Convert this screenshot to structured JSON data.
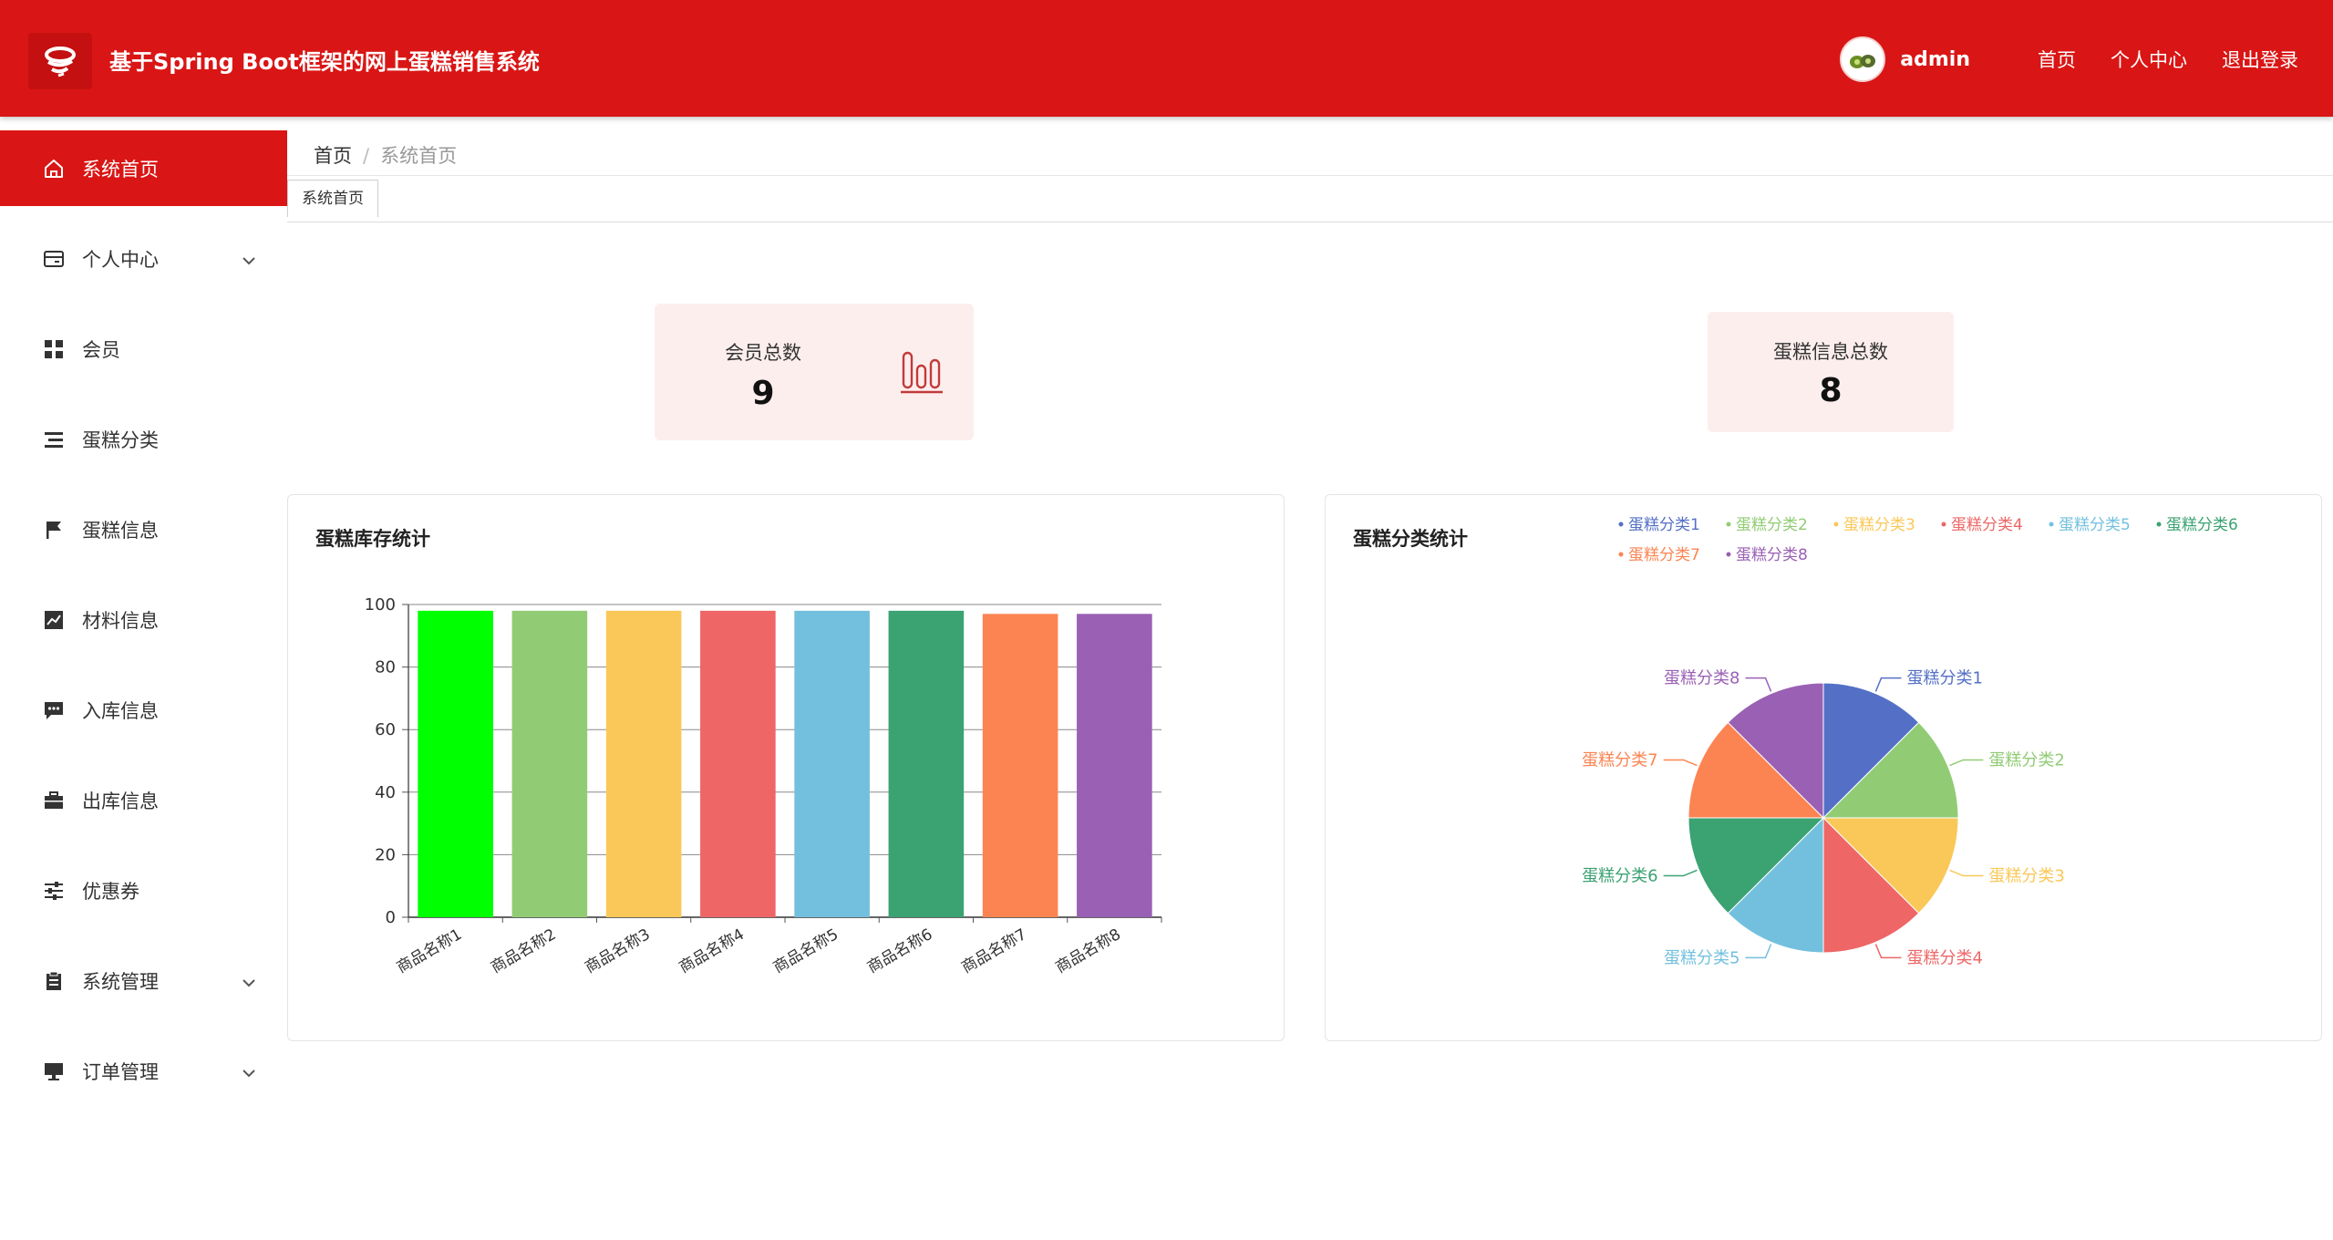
{
  "header": {
    "title": "基于Spring Boot框架的网上蛋糕销售系统",
    "username": "admin",
    "links": [
      "首页",
      "个人中心",
      "退出登录"
    ]
  },
  "sidebar": {
    "items": [
      {
        "label": "系统首页",
        "icon": "home-icon",
        "active": true,
        "arrow": false
      },
      {
        "label": "个人中心",
        "icon": "card-icon",
        "active": false,
        "arrow": true
      },
      {
        "label": "会员",
        "icon": "grid-icon",
        "active": false,
        "arrow": false
      },
      {
        "label": "蛋糕分类",
        "icon": "list-icon",
        "active": false,
        "arrow": false
      },
      {
        "label": "蛋糕信息",
        "icon": "flag-icon",
        "active": false,
        "arrow": false
      },
      {
        "label": "材料信息",
        "icon": "chart-line-icon",
        "active": false,
        "arrow": false
      },
      {
        "label": "入库信息",
        "icon": "message-icon",
        "active": false,
        "arrow": false
      },
      {
        "label": "出库信息",
        "icon": "briefcase-icon",
        "active": false,
        "arrow": false
      },
      {
        "label": "优惠券",
        "icon": "sliders-icon",
        "active": false,
        "arrow": false
      },
      {
        "label": "系统管理",
        "icon": "clipboard-icon",
        "active": false,
        "arrow": true
      },
      {
        "label": "订单管理",
        "icon": "monitor-icon",
        "active": false,
        "arrow": true
      }
    ]
  },
  "breadcrumb": {
    "home": "首页",
    "separator": "/",
    "current": "系统首页"
  },
  "tabs": [
    {
      "label": "系统首页"
    }
  ],
  "stats": {
    "members": {
      "label": "会员总数",
      "value": "9"
    },
    "cakes": {
      "label": "蛋糕信息总数",
      "value": "8"
    }
  },
  "panels": {
    "bar_title": "蛋糕库存统计",
    "pie_title": "蛋糕分类统计"
  },
  "colors": {
    "accent": "#d91615",
    "card_bg": "#fdeeee"
  },
  "chart_data": [
    {
      "type": "bar",
      "title": "蛋糕库存统计",
      "categories": [
        "商品名称1",
        "商品名称2",
        "商品名称3",
        "商品名称4",
        "商品名称5",
        "商品名称6",
        "商品名称7",
        "商品名称8"
      ],
      "values": [
        98,
        98,
        98,
        98,
        98,
        98,
        97,
        97
      ],
      "colors": [
        "#00ff00",
        "#91cc75",
        "#fac858",
        "#ee6666",
        "#73c0de",
        "#3ba272",
        "#fc8452",
        "#9a60b4"
      ],
      "ylim": [
        0,
        100
      ],
      "yticks": [
        0,
        20,
        40,
        60,
        80,
        100
      ],
      "grid": true,
      "legend": "none"
    },
    {
      "type": "pie",
      "title": "蛋糕分类统计",
      "labels": [
        "蛋糕分类1",
        "蛋糕分类2",
        "蛋糕分类3",
        "蛋糕分类4",
        "蛋糕分类5",
        "蛋糕分类6",
        "蛋糕分类7",
        "蛋糕分类8"
      ],
      "values": [
        12.5,
        12.5,
        12.5,
        12.5,
        12.5,
        12.5,
        12.5,
        12.5
      ],
      "colors": [
        "#5470c6",
        "#91cc75",
        "#fac858",
        "#ee6666",
        "#73c0de",
        "#3ba272",
        "#fc8452",
        "#9a60b4"
      ],
      "legend": "top-right"
    }
  ]
}
